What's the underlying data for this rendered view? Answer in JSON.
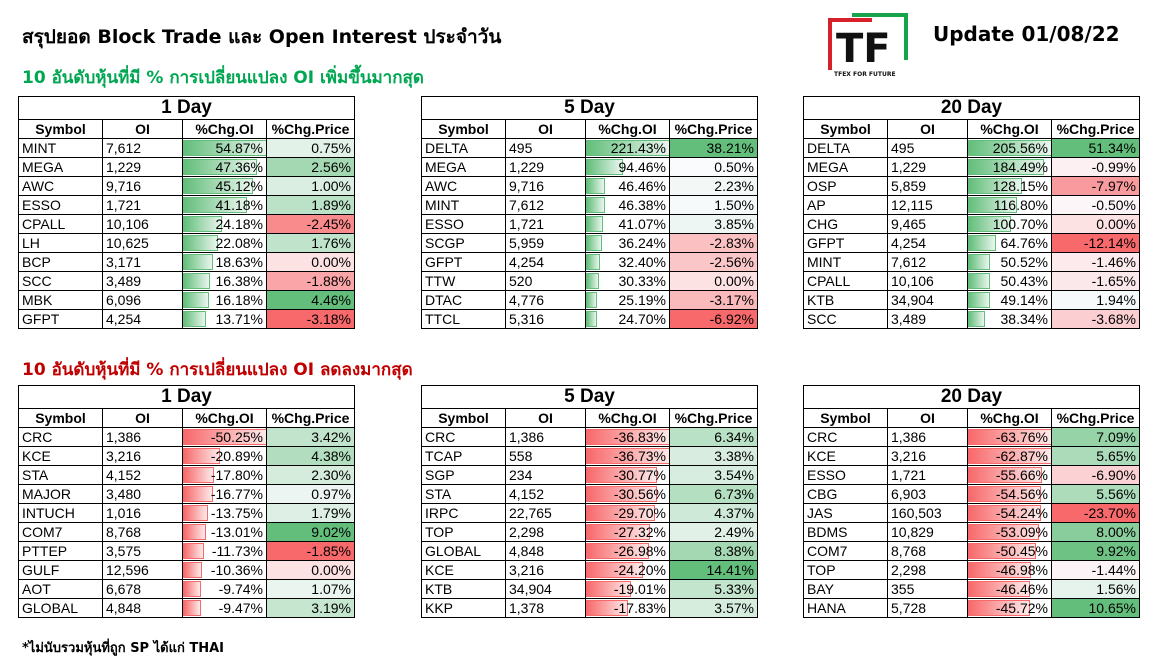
{
  "header": {
    "title": "สรุปยอด Block Trade และ Open Interest ประจำวัน",
    "update": "Update 01/08/22",
    "subtitle_up": "10 อันดับหุ้นที่มี % การเปลี่ยนแปลง OI เพิ่มขึ้นมากสุด",
    "subtitle_down": "10 อันดับหุ้นที่มี % การเปลี่ยนแปลง OI ลดลงมากสุด",
    "footnote": "*ไม่นับรวมหุ้นที่ถูก SP ได้แก่ THAI"
  },
  "logo": {
    "letters": "TF",
    "tagline": "TFEX FOR FUTURE"
  },
  "columns": [
    "Symbol",
    "OI",
    "%Chg.OI",
    "%Chg.Price"
  ],
  "colors": {
    "bar_green": "#63be7b",
    "bar_red": "#f8696b",
    "cell_green": "#63be7b",
    "cell_red": "#f8696b",
    "cell_white": "#fcfcff"
  },
  "tables": [
    {
      "period": "1 Day",
      "rows": [
        [
          "MINT",
          "7,612",
          "54.87%",
          "0.75%"
        ],
        [
          "MEGA",
          "1,229",
          "47.36%",
          "2.56%"
        ],
        [
          "AWC",
          "9,716",
          "45.12%",
          "1.00%"
        ],
        [
          "ESSO",
          "1,721",
          "41.18%",
          "1.89%"
        ],
        [
          "CPALL",
          "10,106",
          "24.18%",
          "-2.45%"
        ],
        [
          "LH",
          "10,625",
          "22.08%",
          "1.76%"
        ],
        [
          "BCP",
          "3,171",
          "18.63%",
          "0.00%"
        ],
        [
          "SCC",
          "3,489",
          "16.38%",
          "-1.88%"
        ],
        [
          "MBK",
          "6,096",
          "16.18%",
          "4.46%"
        ],
        [
          "GFPT",
          "4,254",
          "13.71%",
          "-3.18%"
        ]
      ]
    },
    {
      "period": "5 Day",
      "rows": [
        [
          "DELTA",
          "495",
          "221.43%",
          "38.21%"
        ],
        [
          "MEGA",
          "1,229",
          "94.46%",
          "0.50%"
        ],
        [
          "AWC",
          "9,716",
          "46.46%",
          "2.23%"
        ],
        [
          "MINT",
          "7,612",
          "46.38%",
          "1.50%"
        ],
        [
          "ESSO",
          "1,721",
          "41.07%",
          "3.85%"
        ],
        [
          "SCGP",
          "5,959",
          "36.24%",
          "-2.83%"
        ],
        [
          "GFPT",
          "4,254",
          "32.40%",
          "-2.56%"
        ],
        [
          "TTW",
          "520",
          "30.33%",
          "0.00%"
        ],
        [
          "DTAC",
          "4,776",
          "25.19%",
          "-3.17%"
        ],
        [
          "TTCL",
          "5,316",
          "24.70%",
          "-6.92%"
        ]
      ]
    },
    {
      "period": "20 Day",
      "rows": [
        [
          "DELTA",
          "495",
          "205.56%",
          "51.34%"
        ],
        [
          "MEGA",
          "1,229",
          "184.49%",
          "-0.99%"
        ],
        [
          "OSP",
          "5,859",
          "128.15%",
          "-7.97%"
        ],
        [
          "AP",
          "12,115",
          "116.80%",
          "-0.50%"
        ],
        [
          "CHG",
          "9,465",
          "100.70%",
          "0.00%"
        ],
        [
          "GFPT",
          "4,254",
          "64.76%",
          "-12.14%"
        ],
        [
          "MINT",
          "7,612",
          "50.52%",
          "-1.46%"
        ],
        [
          "CPALL",
          "10,106",
          "50.43%",
          "-1.65%"
        ],
        [
          "KTB",
          "34,904",
          "49.14%",
          "1.94%"
        ],
        [
          "SCC",
          "3,489",
          "38.34%",
          "-3.68%"
        ]
      ]
    },
    {
      "period": "1 Day",
      "rows": [
        [
          "CRC",
          "1,386",
          "-50.25%",
          "3.42%"
        ],
        [
          "KCE",
          "3,216",
          "-20.89%",
          "4.38%"
        ],
        [
          "STA",
          "4,152",
          "-17.80%",
          "2.30%"
        ],
        [
          "MAJOR",
          "3,480",
          "-16.77%",
          "0.97%"
        ],
        [
          "INTUCH",
          "1,016",
          "-13.75%",
          "1.79%"
        ],
        [
          "COM7",
          "8,768",
          "-13.01%",
          "9.02%"
        ],
        [
          "PTTEP",
          "3,575",
          "-11.73%",
          "-1.85%"
        ],
        [
          "GULF",
          "12,596",
          "-10.36%",
          "0.00%"
        ],
        [
          "AOT",
          "6,678",
          "-9.74%",
          "1.07%"
        ],
        [
          "GLOBAL",
          "4,848",
          "-9.47%",
          "3.19%"
        ]
      ]
    },
    {
      "period": "5 Day",
      "rows": [
        [
          "CRC",
          "1,386",
          "-36.83%",
          "6.34%"
        ],
        [
          "TCAP",
          "558",
          "-36.73%",
          "3.38%"
        ],
        [
          "SGP",
          "234",
          "-30.77%",
          "3.54%"
        ],
        [
          "STA",
          "4,152",
          "-30.56%",
          "6.73%"
        ],
        [
          "IRPC",
          "22,765",
          "-29.70%",
          "4.37%"
        ],
        [
          "TOP",
          "2,298",
          "-27.32%",
          "2.49%"
        ],
        [
          "GLOBAL",
          "4,848",
          "-26.98%",
          "8.38%"
        ],
        [
          "KCE",
          "3,216",
          "-24.20%",
          "14.41%"
        ],
        [
          "KTB",
          "34,904",
          "-19.01%",
          "5.33%"
        ],
        [
          "KKP",
          "1,378",
          "-17.83%",
          "3.57%"
        ]
      ]
    },
    {
      "period": "20 Day",
      "rows": [
        [
          "CRC",
          "1,386",
          "-63.76%",
          "7.09%"
        ],
        [
          "KCE",
          "3,216",
          "-62.87%",
          "5.65%"
        ],
        [
          "ESSO",
          "1,721",
          "-55.66%",
          "-6.90%"
        ],
        [
          "CBG",
          "6,903",
          "-54.56%",
          "5.56%"
        ],
        [
          "JAS",
          "160,503",
          "-54.24%",
          "-23.70%"
        ],
        [
          "BDMS",
          "10,829",
          "-53.09%",
          "8.00%"
        ],
        [
          "COM7",
          "8,768",
          "-50.45%",
          "9.92%"
        ],
        [
          "TOP",
          "2,298",
          "-46.98%",
          "-1.44%"
        ],
        [
          "BAY",
          "355",
          "-46.46%",
          "1.56%"
        ],
        [
          "HANA",
          "5,728",
          "-45.72%",
          "10.65%"
        ]
      ]
    }
  ]
}
